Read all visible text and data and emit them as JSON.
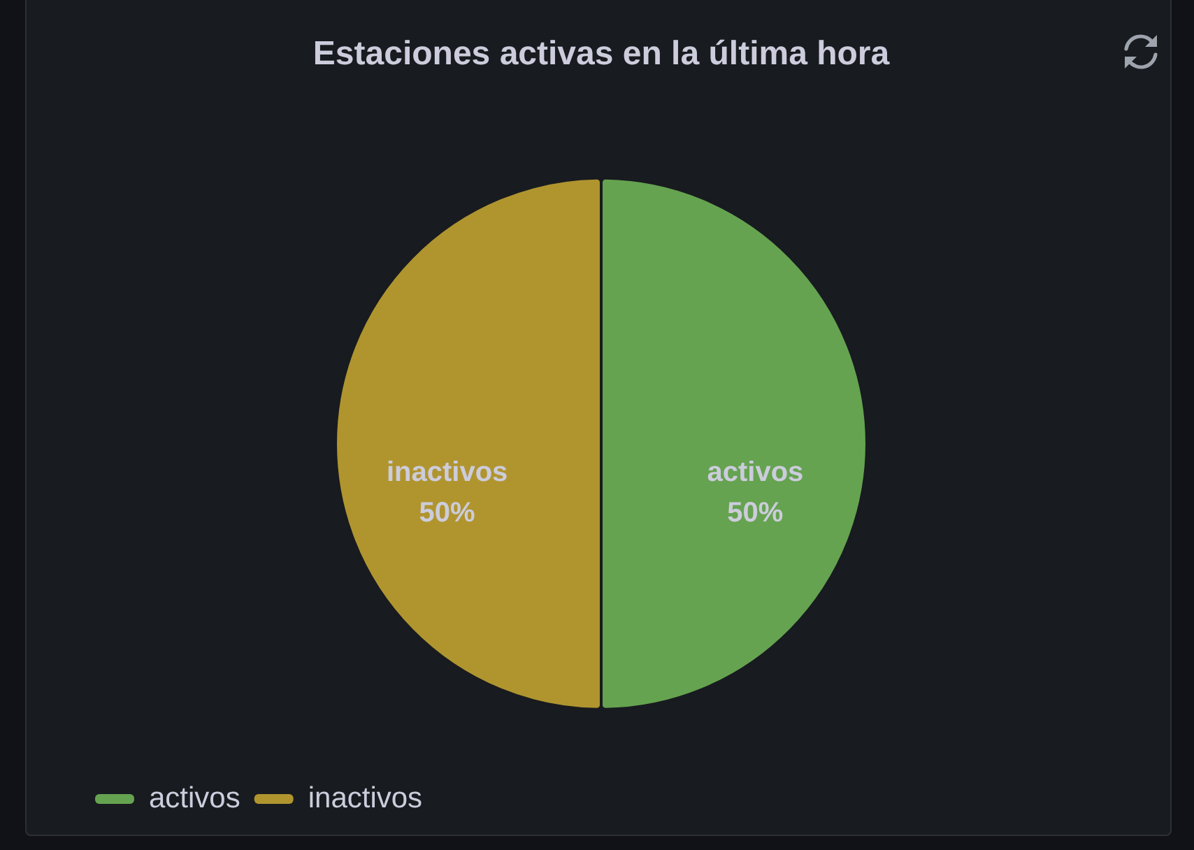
{
  "chart_data": {
    "type": "pie",
    "title": "Estaciones activas en la última hora",
    "categories": [
      "activos",
      "inactivos"
    ],
    "values": [
      50,
      50
    ],
    "colors": [
      "#65a350",
      "#b0952f"
    ],
    "value_labels": [
      "50%",
      "50%"
    ],
    "legend": "bottom left"
  }
}
